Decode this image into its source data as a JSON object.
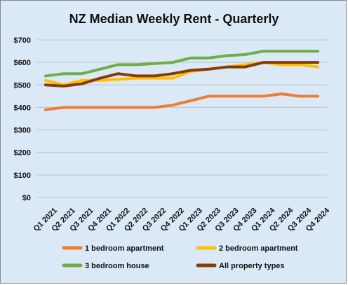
{
  "chart_data": {
    "type": "line",
    "title": "NZ Median Weekly Rent - Quarterly",
    "xlabel": "",
    "ylabel": "",
    "ylim": [
      0,
      700
    ],
    "y_tick_values": [
      0,
      100,
      200,
      300,
      400,
      500,
      600,
      700
    ],
    "y_tick_labels": [
      "$0",
      "$100",
      "$200",
      "$300",
      "$400",
      "$500",
      "$600",
      "$700"
    ],
    "grid": true,
    "legend_position": "bottom",
    "categories": [
      "Q1 2021",
      "Q2 2021",
      "Q3 2021",
      "Q4 2021",
      "Q1 2022",
      "Q2 2022",
      "Q3 2022",
      "Q4 2022",
      "Q1 2023",
      "Q2 2023",
      "Q3 2023",
      "Q4 2023",
      "Q1 2024",
      "Q2 2024",
      "Q3 2024",
      "Q4 2024"
    ],
    "series": [
      {
        "name": "1 bedroom apartment",
        "color": "#ed7d31",
        "values": [
          390,
          400,
          400,
          400,
          400,
          400,
          400,
          410,
          430,
          450,
          450,
          450,
          450,
          460,
          450,
          450
        ]
      },
      {
        "name": "2 bedroom apartment",
        "color": "#ffc000",
        "values": [
          520,
          500,
          520,
          520,
          525,
          530,
          530,
          530,
          560,
          570,
          580,
          590,
          600,
          590,
          590,
          580
        ]
      },
      {
        "name": "3 bedroom house",
        "color": "#70ad47",
        "values": [
          540,
          550,
          550,
          570,
          590,
          590,
          595,
          600,
          620,
          620,
          630,
          635,
          650,
          650,
          650,
          650
        ]
      },
      {
        "name": "All property types",
        "color": "#843c0c",
        "values": [
          500,
          495,
          505,
          530,
          550,
          540,
          540,
          550,
          565,
          570,
          580,
          580,
          600,
          600,
          600,
          600
        ]
      }
    ]
  },
  "colors": {
    "background": "#dbe8f6",
    "grid": "#b7c3d0",
    "text": "#111111"
  }
}
